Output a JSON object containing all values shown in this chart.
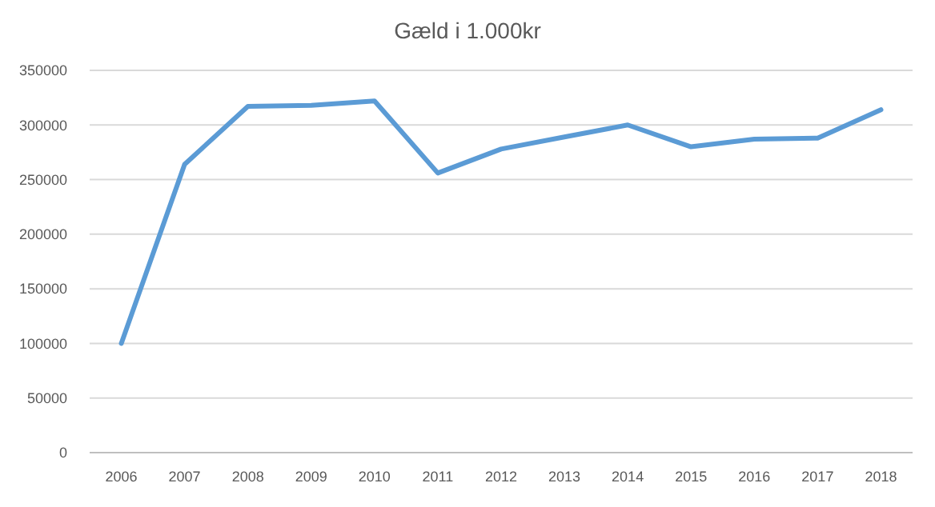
{
  "chart_data": {
    "type": "line",
    "title": "Gæld i 1.000kr",
    "categories": [
      "2006",
      "2007",
      "2008",
      "2009",
      "2010",
      "2011",
      "2012",
      "2013",
      "2014",
      "2015",
      "2016",
      "2017",
      "2018"
    ],
    "series": [
      {
        "color": "#5b9bd5",
        "values": [
          100000,
          264000,
          317000,
          318000,
          322000,
          256000,
          278000,
          289000,
          300000,
          280000,
          287000,
          288000,
          314000
        ]
      }
    ],
    "ylim": [
      0,
      350000
    ],
    "yticks": [
      0,
      50000,
      100000,
      150000,
      200000,
      250000,
      300000,
      350000
    ],
    "grid": "y"
  }
}
